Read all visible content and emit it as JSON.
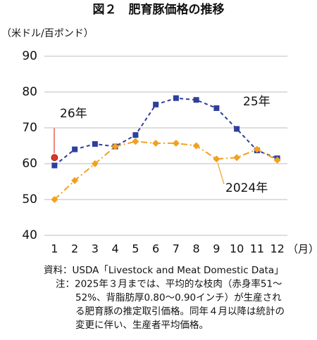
{
  "chart_data": {
    "type": "line",
    "title": "図２　肥育豚価格の推移",
    "y_label": "（米ドル/百ポンド）",
    "x_label": "（月）",
    "categories": [
      "1",
      "2",
      "3",
      "4",
      "5",
      "6",
      "7",
      "8",
      "9",
      "10",
      "11",
      "12"
    ],
    "series": [
      {
        "name": "25年",
        "color": "#2e3f9c",
        "marker": "square",
        "values": [
          59.5,
          64,
          65.5,
          64.8,
          68,
          76.5,
          78.3,
          77.8,
          75.5,
          69.7,
          63.7,
          61.5
        ]
      },
      {
        "name": "2024年",
        "color": "#f2a01e",
        "marker": "diamond",
        "values": [
          50,
          55.3,
          60,
          64.8,
          66.2,
          65.7,
          65.7,
          65,
          61.3,
          61.7,
          64,
          61
        ]
      },
      {
        "name": "26年",
        "color": "#e2352a",
        "marker": "circle",
        "values": [
          61.7,
          null,
          null,
          null,
          null,
          null,
          null,
          null,
          null,
          null,
          null,
          null
        ]
      }
    ],
    "ylim": [
      40,
      90
    ],
    "yticks": [
      40,
      50,
      60,
      70,
      80,
      90
    ],
    "grid": true,
    "notes": [
      "資料：USDA「Livestock and Meat Domestic Data」",
      "注：2025年３月までは、平均的な枝肉（赤身率51～",
      "52%、背脂肪厚0.80～0.90インチ）が生産され",
      "る肥育豚の推定取引価格。同年４月以降は統計の",
      "変更に伴い、生産者平均価格。"
    ]
  }
}
